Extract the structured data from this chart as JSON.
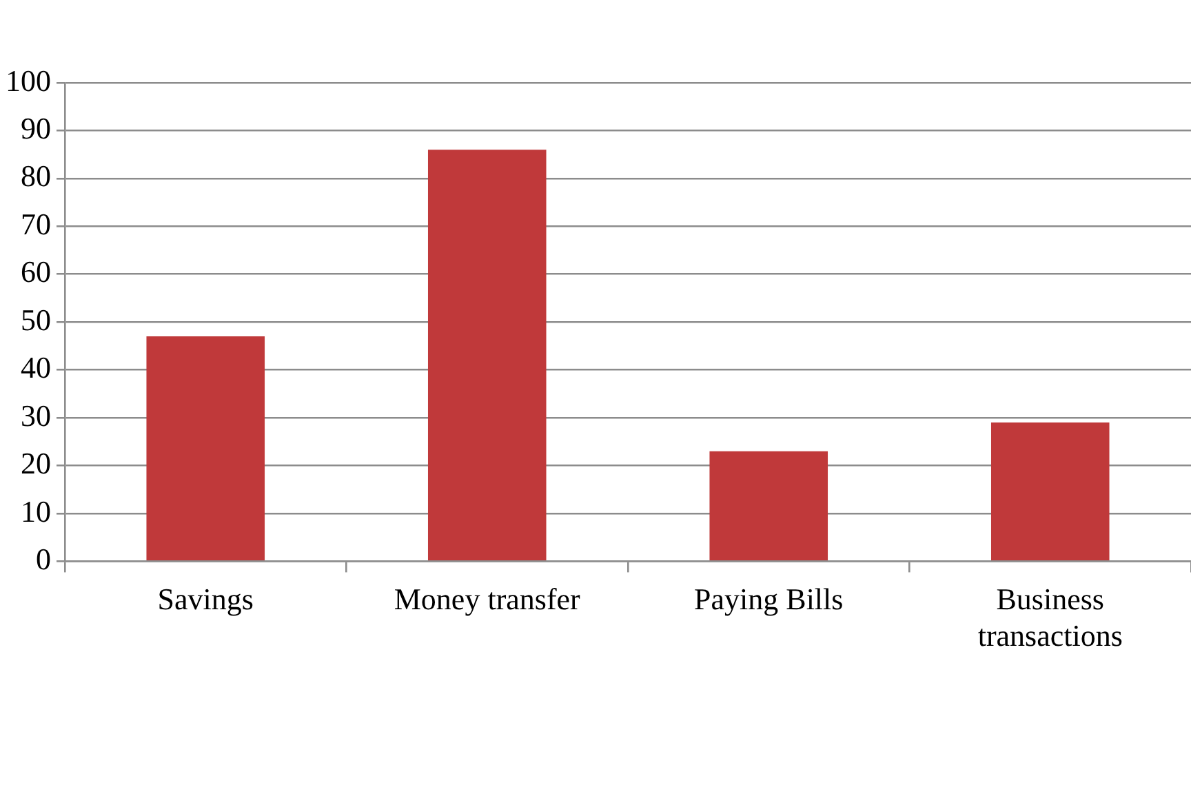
{
  "chart_data": {
    "type": "bar",
    "categories": [
      "Savings",
      "Money transfer",
      "Paying Bills",
      "Business transactions"
    ],
    "values": [
      47,
      86,
      23,
      29
    ],
    "color": "#c0393a",
    "ylim": [
      0,
      100
    ],
    "yticks": [
      0,
      10,
      20,
      30,
      40,
      50,
      60,
      70,
      80,
      90,
      100
    ],
    "grid": "y",
    "legend": false
  }
}
